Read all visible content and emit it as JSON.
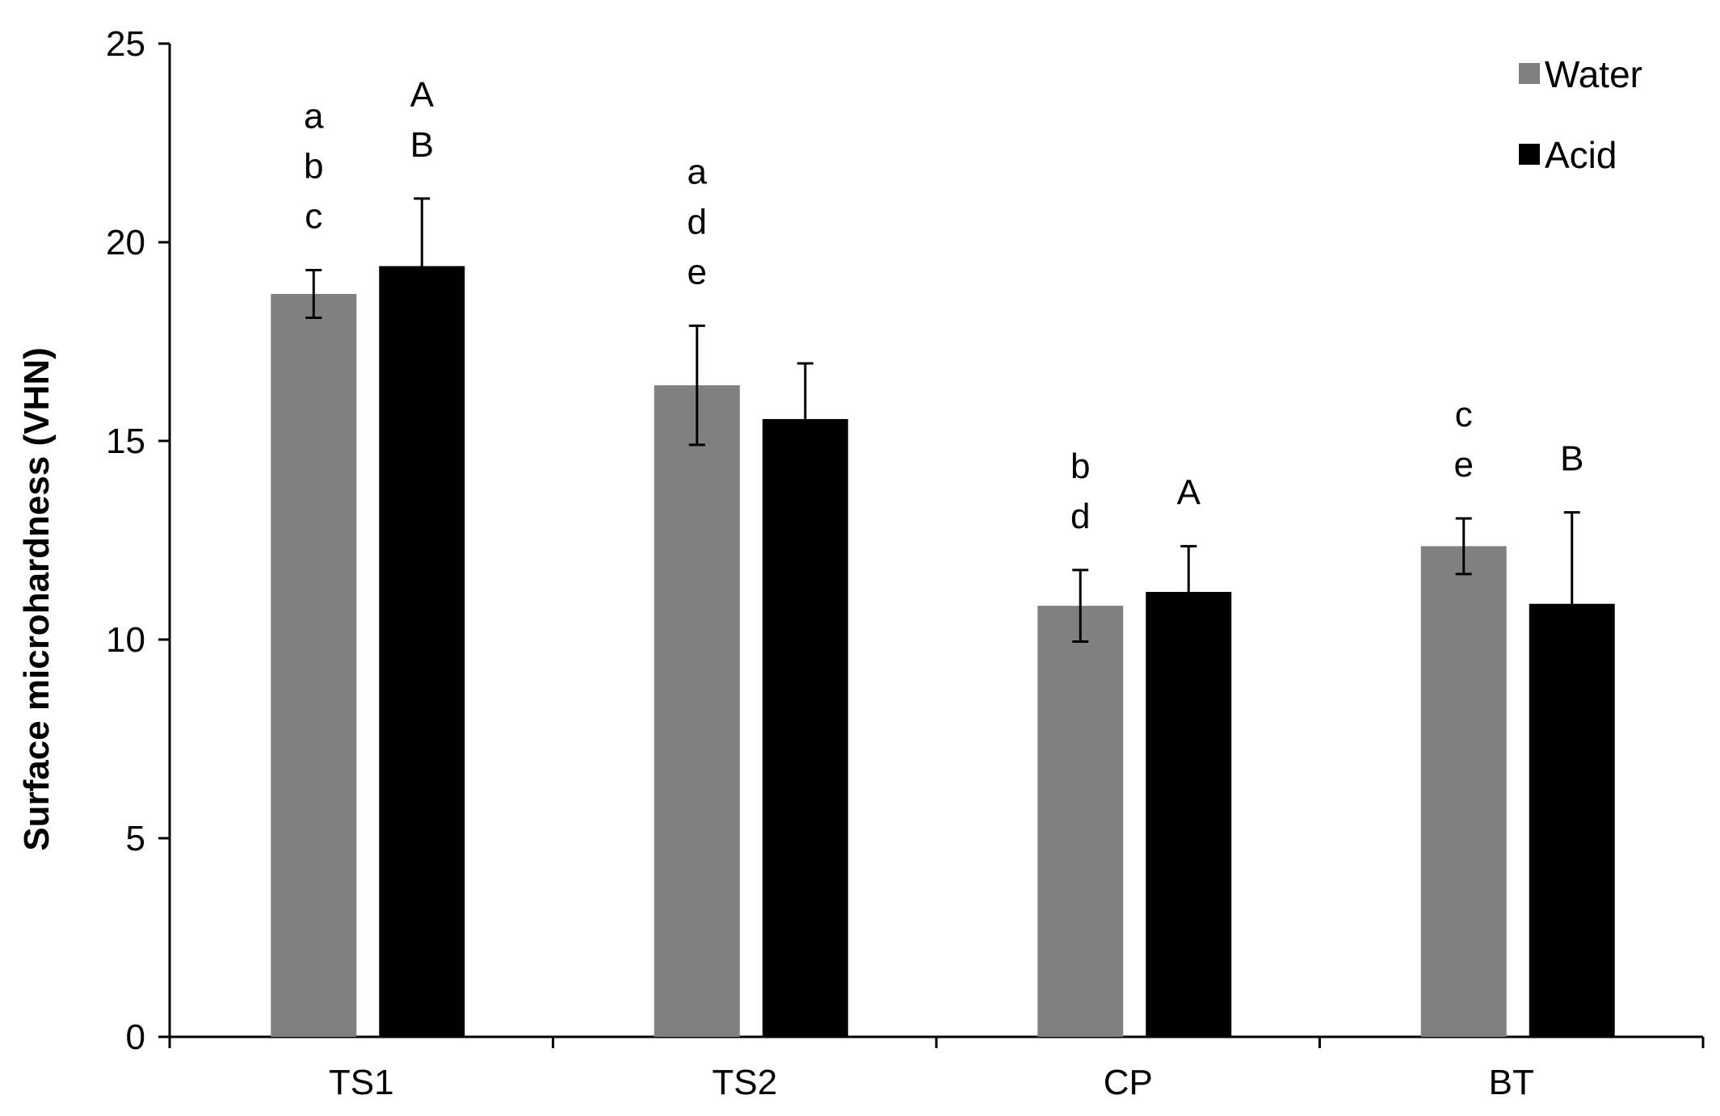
{
  "chart_data": {
    "type": "bar",
    "title": "",
    "xlabel": "",
    "ylabel": "Surface microhardness (VHN)",
    "ylim": [
      0,
      25
    ],
    "yticks": [
      "0",
      "5",
      "10",
      "15",
      "20",
      "25"
    ],
    "categories": [
      "TS1",
      "TS2",
      "CP",
      "BT"
    ],
    "series": [
      {
        "name": "Water",
        "color": "#808080",
        "values": [
          18.7,
          16.4,
          10.85,
          12.35
        ],
        "errors": [
          0.6,
          1.5,
          0.9,
          0.7
        ],
        "annotations": [
          [
            "a",
            "b",
            "c"
          ],
          [
            "a",
            "d",
            "e"
          ],
          [
            "b",
            "d"
          ],
          [
            "c",
            "e"
          ]
        ]
      },
      {
        "name": "Acid",
        "color": "#000000",
        "values": [
          19.4,
          15.55,
          11.2,
          10.9
        ],
        "errors": [
          1.7,
          1.4,
          1.15,
          2.3
        ],
        "annotations": [
          [
            "A",
            "B"
          ],
          [],
          [
            "A"
          ],
          [
            "B"
          ]
        ]
      }
    ],
    "grid": false,
    "legend_position": "top-right"
  }
}
